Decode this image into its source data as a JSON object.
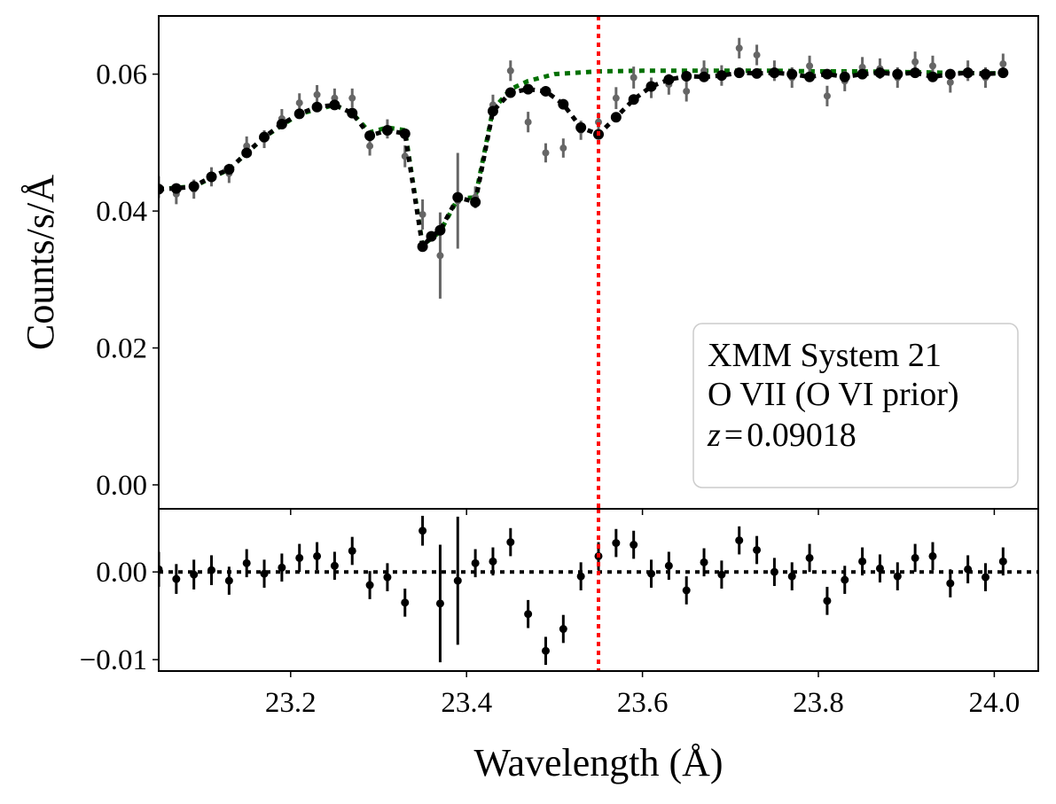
{
  "chart_data": [
    {
      "type": "scatter",
      "panel": "top",
      "ylabel": "Counts/s/Å",
      "xlim": [
        23.05,
        24.05
      ],
      "ylim": [
        -0.0035,
        0.0685
      ],
      "yticks": [
        0.0,
        0.02,
        0.04,
        0.06
      ],
      "ytick_labels": [
        "0.00",
        "0.02",
        "0.04",
        "0.06"
      ],
      "grid": false,
      "legend": {
        "placement": "lower-right",
        "lines": [
          "XMM System 21",
          "O VII (O VI prior)"
        ],
        "z_symbol": "z",
        "z_value": "0.09018"
      },
      "vline": {
        "x": 23.55,
        "color": "#ff0000",
        "style": "dotted"
      },
      "colors": {
        "data": "#666666",
        "model": "#000000",
        "continuum": "#007000"
      },
      "series": [
        {
          "role": "data",
          "x": [
            23.05,
            23.07,
            23.09,
            23.11,
            23.13,
            23.15,
            23.17,
            23.19,
            23.21,
            23.23,
            23.25,
            23.27,
            23.29,
            23.31,
            23.33,
            23.35,
            23.37,
            23.39,
            23.41,
            23.43,
            23.45,
            23.47,
            23.49,
            23.51,
            23.53,
            23.55,
            23.57,
            23.59,
            23.61,
            23.63,
            23.65,
            23.67,
            23.69,
            23.71,
            23.73,
            23.75,
            23.77,
            23.79,
            23.81,
            23.83,
            23.85,
            23.87,
            23.89,
            23.91,
            23.93,
            23.95,
            23.97,
            23.99,
            24.01
          ],
          "y": [
            0.0435,
            0.0425,
            0.0432,
            0.045,
            0.0455,
            0.0495,
            0.0505,
            0.0535,
            0.0558,
            0.057,
            0.0565,
            0.0565,
            0.0495,
            0.052,
            0.048,
            0.0395,
            0.0335,
            0.0415,
            0.042,
            0.0555,
            0.0605,
            0.053,
            0.0485,
            0.0492,
            0.0518,
            0.053,
            0.0565,
            0.0595,
            0.058,
            0.0585,
            0.0575,
            0.0605,
            0.0598,
            0.0638,
            0.0628,
            0.0605,
            0.0595,
            0.0612,
            0.0568,
            0.059,
            0.061,
            0.0608,
            0.0595,
            0.0618,
            0.0612,
            0.0588,
            0.0605,
            0.0595,
            0.0615
          ],
          "yerr": [
            0.0016,
            0.0015,
            0.0014,
            0.0014,
            0.0014,
            0.0014,
            0.0013,
            0.0014,
            0.0014,
            0.0014,
            0.0014,
            0.0014,
            0.0014,
            0.0014,
            0.0016,
            0.0022,
            0.0063,
            0.007,
            0.0016,
            0.0015,
            0.0015,
            0.0015,
            0.0014,
            0.0014,
            0.0014,
            0.0014,
            0.0016,
            0.0016,
            0.0015,
            0.0015,
            0.0015,
            0.0015,
            0.0015,
            0.0015,
            0.0015,
            0.0015,
            0.0015,
            0.0015,
            0.0015,
            0.0015,
            0.0015,
            0.0015,
            0.0015,
            0.0015,
            0.0015,
            0.0015,
            0.0015,
            0.0015,
            0.0015
          ]
        },
        {
          "role": "model",
          "x": [
            23.05,
            23.07,
            23.09,
            23.11,
            23.13,
            23.15,
            23.17,
            23.19,
            23.21,
            23.23,
            23.25,
            23.27,
            23.29,
            23.31,
            23.33,
            23.35,
            23.36,
            23.37,
            23.39,
            23.41,
            23.43,
            23.45,
            23.47,
            23.49,
            23.51,
            23.53,
            23.55,
            23.57,
            23.59,
            23.61,
            23.63,
            23.65,
            23.67,
            23.69,
            23.71,
            23.73,
            23.75,
            23.77,
            23.79,
            23.81,
            23.83,
            23.85,
            23.87,
            23.89,
            23.91,
            23.93,
            23.95,
            23.97,
            23.99,
            24.01
          ],
          "y": [
            0.0432,
            0.0433,
            0.0436,
            0.045,
            0.0461,
            0.0485,
            0.0508,
            0.0527,
            0.0542,
            0.0552,
            0.0555,
            0.0543,
            0.051,
            0.0518,
            0.0513,
            0.0348,
            0.0363,
            0.0372,
            0.042,
            0.0413,
            0.0546,
            0.0573,
            0.0578,
            0.0575,
            0.0556,
            0.0522,
            0.0512,
            0.0537,
            0.0563,
            0.0582,
            0.0592,
            0.0597,
            0.0596,
            0.0598,
            0.0602,
            0.0601,
            0.0602,
            0.06,
            0.0596,
            0.06,
            0.0596,
            0.06,
            0.0602,
            0.06,
            0.0602,
            0.0596,
            0.06,
            0.0602,
            0.06,
            0.0602
          ]
        },
        {
          "role": "continuum",
          "x": [
            23.05,
            23.09,
            23.13,
            23.17,
            23.21,
            23.25,
            23.27,
            23.29,
            23.31,
            23.33,
            23.35,
            23.37,
            23.39,
            23.41,
            23.43,
            23.45,
            23.47,
            23.5,
            23.55,
            23.6,
            23.65,
            23.7,
            23.75,
            23.8,
            23.85,
            23.9,
            23.95,
            24.01
          ],
          "y": [
            0.0432,
            0.0436,
            0.0461,
            0.0508,
            0.0542,
            0.0555,
            0.0543,
            0.0515,
            0.0522,
            0.0518,
            0.035,
            0.037,
            0.0418,
            0.042,
            0.0548,
            0.0578,
            0.059,
            0.06,
            0.0604,
            0.0605,
            0.0605,
            0.0605,
            0.0605,
            0.0604,
            0.0604,
            0.0603,
            0.0602,
            0.0601
          ]
        }
      ]
    },
    {
      "type": "scatter",
      "panel": "bottom",
      "xlabel": "Wavelength (Å)",
      "xlim": [
        23.05,
        24.05
      ],
      "xticks": [
        23.2,
        23.4,
        23.6,
        23.8,
        24.0
      ],
      "xtick_labels": [
        "23.2",
        "23.4",
        "23.6",
        "23.8",
        "24.0"
      ],
      "ylim": [
        -0.0113,
        0.0072
      ],
      "yticks": [
        -0.01,
        0.0
      ],
      "ytick_labels": [
        "−0.01",
        "0.00"
      ],
      "zero_line": {
        "y": 0.0,
        "style": "dotted",
        "color": "#000000"
      },
      "vline": {
        "x": 23.55,
        "color": "#ff0000",
        "style": "dotted"
      },
      "series": [
        {
          "role": "residuals",
          "x": [
            23.05,
            23.07,
            23.09,
            23.11,
            23.13,
            23.15,
            23.17,
            23.19,
            23.21,
            23.23,
            23.25,
            23.27,
            23.29,
            23.31,
            23.33,
            23.35,
            23.37,
            23.39,
            23.41,
            23.43,
            23.45,
            23.47,
            23.49,
            23.51,
            23.53,
            23.55,
            23.57,
            23.59,
            23.61,
            23.63,
            23.65,
            23.67,
            23.69,
            23.71,
            23.73,
            23.75,
            23.77,
            23.79,
            23.81,
            23.83,
            23.85,
            23.87,
            23.89,
            23.91,
            23.93,
            23.95,
            23.97,
            23.99,
            24.01
          ],
          "y": [
            0.0003,
            -0.0008,
            -0.0003,
            0.0002,
            -0.001,
            0.001,
            -0.0002,
            0.0005,
            0.0016,
            0.0018,
            0.0007,
            0.0024,
            -0.0015,
            -0.0006,
            -0.0035,
            0.0047,
            -0.0036,
            -0.001,
            0.001,
            0.0012,
            0.0034,
            -0.0048,
            -0.009,
            -0.0065,
            -0.0005,
            0.0018,
            0.0033,
            0.0031,
            -0.0002,
            0.0007,
            -0.0021,
            0.0011,
            -0.0003,
            0.0036,
            0.0025,
            0.0,
            -0.0005,
            0.0016,
            -0.0033,
            -0.0009,
            0.0012,
            0.0004,
            -0.0005,
            0.0016,
            0.0018,
            -0.0013,
            0.0003,
            -0.0006,
            0.0012
          ],
          "yerr": [
            0.002,
            0.0017,
            0.0017,
            0.0017,
            0.0016,
            0.0016,
            0.0016,
            0.0016,
            0.0016,
            0.0016,
            0.0016,
            0.0016,
            0.0016,
            0.0016,
            0.0016,
            0.0017,
            0.0067,
            0.0073,
            0.0016,
            0.0016,
            0.0016,
            0.0016,
            0.0016,
            0.0016,
            0.0016,
            0.0016,
            0.0016,
            0.0016,
            0.0016,
            0.0016,
            0.0016,
            0.0016,
            0.0016,
            0.0016,
            0.0016,
            0.0016,
            0.0016,
            0.0016,
            0.0016,
            0.0016,
            0.0016,
            0.0016,
            0.0016,
            0.0016,
            0.0016,
            0.0016,
            0.0016,
            0.0016,
            0.0016
          ]
        }
      ]
    }
  ]
}
